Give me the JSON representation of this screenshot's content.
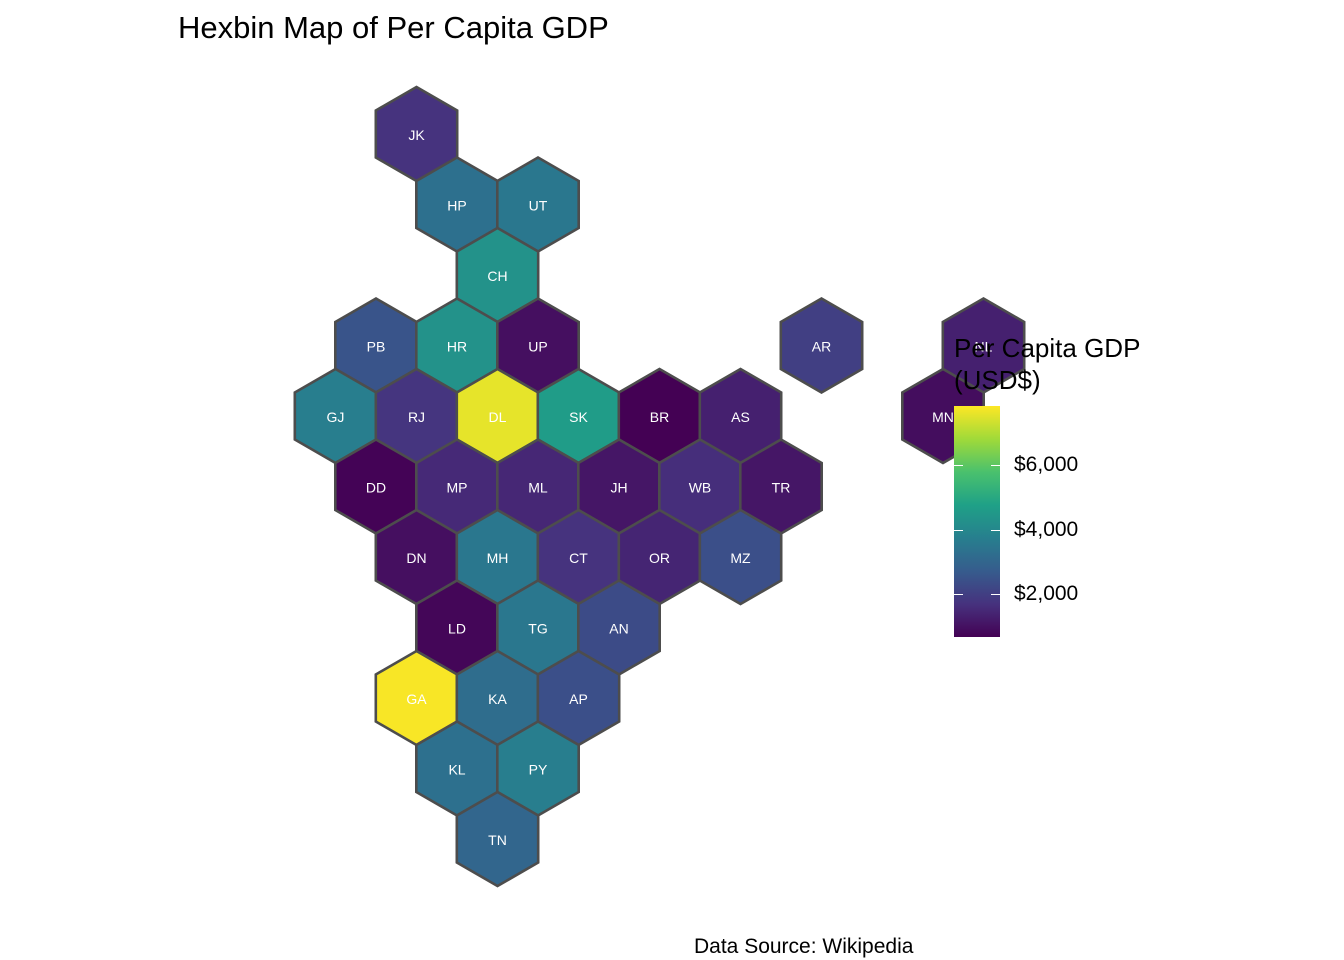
{
  "title": "Hexbin Map of Per Capita GDP",
  "caption": "Data Source: Wikipedia",
  "legend": {
    "title_line1": "Per Capita GDP",
    "title_line2": "(USD$)",
    "ticks": [
      {
        "label": "$6,000",
        "value": 6000
      },
      {
        "label": "$4,000",
        "value": 4000
      },
      {
        "label": "$2,000",
        "value": 2000
      }
    ],
    "min_value": 650,
    "max_value": 7850,
    "palette": [
      "#440154",
      "#46327e",
      "#365c8d",
      "#277f8e",
      "#1fa187",
      "#4ac16d",
      "#a0da39",
      "#fde725"
    ]
  },
  "hex_style": {
    "stroke_color": "#4d4d4d",
    "label_color": "#ffffff"
  },
  "hexes": [
    {
      "code": "JK",
      "gdp": 1700,
      "col": 2.5,
      "row": 0
    },
    {
      "code": "HP",
      "gdp": 3300,
      "col": 3,
      "row": 1
    },
    {
      "code": "UT",
      "gdp": 3500,
      "col": 4,
      "row": 1
    },
    {
      "code": "CH",
      "gdp": 4300,
      "col": 3.5,
      "row": 2
    },
    {
      "code": "PB",
      "gdp": 2500,
      "col": 2,
      "row": 3
    },
    {
      "code": "HR",
      "gdp": 4300,
      "col": 3,
      "row": 3
    },
    {
      "code": "UP",
      "gdp": 950,
      "col": 4,
      "row": 3
    },
    {
      "code": "AR",
      "gdp": 2000,
      "col": 7.5,
      "row": 3
    },
    {
      "code": "NL",
      "gdp": 1300,
      "col": 9.5,
      "row": 3
    },
    {
      "code": "GJ",
      "gdp": 3700,
      "col": 1.5,
      "row": 4
    },
    {
      "code": "RJ",
      "gdp": 1750,
      "col": 2.5,
      "row": 4
    },
    {
      "code": "DL",
      "gdp": 7600,
      "col": 3.5,
      "row": 4
    },
    {
      "code": "SK",
      "gdp": 4600,
      "col": 4.5,
      "row": 4
    },
    {
      "code": "BR",
      "gdp": 650,
      "col": 5.5,
      "row": 4
    },
    {
      "code": "AS",
      "gdp": 1300,
      "col": 6.5,
      "row": 4
    },
    {
      "code": "MN",
      "gdp": 900,
      "col": 9,
      "row": 4
    },
    {
      "code": "DD",
      "gdp": 700,
      "col": 2,
      "row": 5
    },
    {
      "code": "MP",
      "gdp": 1500,
      "col": 3,
      "row": 5
    },
    {
      "code": "ML",
      "gdp": 1450,
      "col": 4,
      "row": 5
    },
    {
      "code": "JH",
      "gdp": 1100,
      "col": 5,
      "row": 5
    },
    {
      "code": "WB",
      "gdp": 1600,
      "col": 6,
      "row": 5
    },
    {
      "code": "TR",
      "gdp": 1100,
      "col": 7,
      "row": 5
    },
    {
      "code": "DN",
      "gdp": 950,
      "col": 2.5,
      "row": 6
    },
    {
      "code": "MH",
      "gdp": 3500,
      "col": 3.5,
      "row": 6
    },
    {
      "code": "CT",
      "gdp": 1700,
      "col": 4.5,
      "row": 6
    },
    {
      "code": "OR",
      "gdp": 1400,
      "col": 5.5,
      "row": 6
    },
    {
      "code": "MZ",
      "gdp": 2400,
      "col": 6.5,
      "row": 6
    },
    {
      "code": "LD",
      "gdp": 750,
      "col": 3,
      "row": 7
    },
    {
      "code": "TG",
      "gdp": 3500,
      "col": 4,
      "row": 7
    },
    {
      "code": "AN",
      "gdp": 2300,
      "col": 5,
      "row": 7
    },
    {
      "code": "GA",
      "gdp": 7800,
      "col": 2.5,
      "row": 8
    },
    {
      "code": "KA",
      "gdp": 3200,
      "col": 3.5,
      "row": 8
    },
    {
      "code": "AP",
      "gdp": 2400,
      "col": 4.5,
      "row": 8
    },
    {
      "code": "KL",
      "gdp": 3300,
      "col": 3,
      "row": 9
    },
    {
      "code": "PY",
      "gdp": 3700,
      "col": 4,
      "row": 9
    },
    {
      "code": "TN",
      "gdp": 3000,
      "col": 3.5,
      "row": 10
    }
  ]
}
